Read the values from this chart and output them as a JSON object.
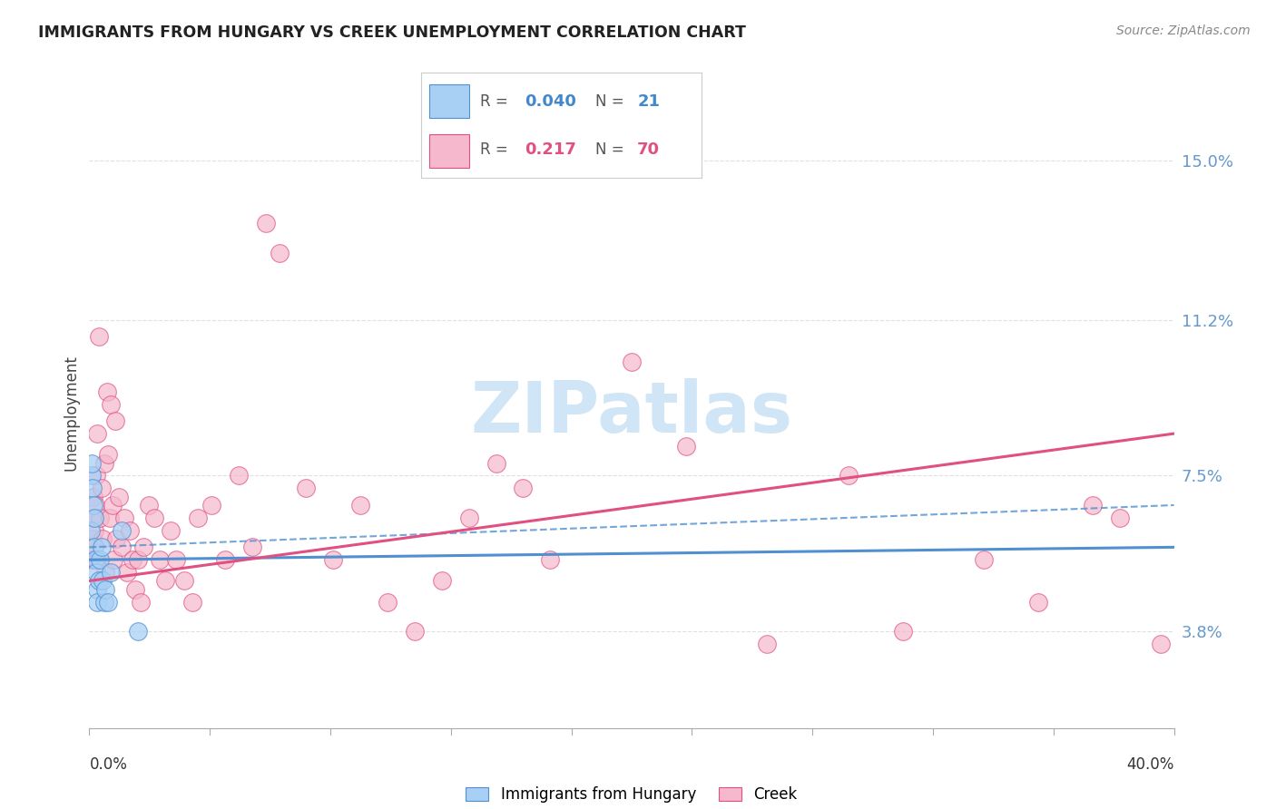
{
  "title": "IMMIGRANTS FROM HUNGARY VS CREEK UNEMPLOYMENT CORRELATION CHART",
  "source": "Source: ZipAtlas.com",
  "ylabel": "Unemployment",
  "ytick_labels": [
    "3.8%",
    "7.5%",
    "11.2%",
    "15.0%"
  ],
  "ytick_values": [
    3.8,
    7.5,
    11.2,
    15.0
  ],
  "xlim": [
    0.0,
    40.0
  ],
  "ylim": [
    1.5,
    16.5
  ],
  "legend_blue_R": "0.040",
  "legend_blue_N": "21",
  "legend_pink_R": "0.217",
  "legend_pink_N": "70",
  "blue_color": "#A8D0F5",
  "pink_color": "#F5B8CC",
  "blue_line_color": "#5090D0",
  "pink_line_color": "#E05080",
  "watermark_color": "#D0E5F5",
  "blue_scatter": [
    [
      0.05,
      6.2
    ],
    [
      0.08,
      7.5
    ],
    [
      0.1,
      7.8
    ],
    [
      0.12,
      7.2
    ],
    [
      0.15,
      6.8
    ],
    [
      0.18,
      6.5
    ],
    [
      0.2,
      5.8
    ],
    [
      0.22,
      5.5
    ],
    [
      0.25,
      5.2
    ],
    [
      0.28,
      4.8
    ],
    [
      0.3,
      4.5
    ],
    [
      0.35,
      5.0
    ],
    [
      0.4,
      5.5
    ],
    [
      0.45,
      5.8
    ],
    [
      0.5,
      5.0
    ],
    [
      0.55,
      4.5
    ],
    [
      0.6,
      4.8
    ],
    [
      0.7,
      4.5
    ],
    [
      0.8,
      5.2
    ],
    [
      1.2,
      6.2
    ],
    [
      1.8,
      3.8
    ]
  ],
  "pink_scatter": [
    [
      0.05,
      5.8
    ],
    [
      0.08,
      6.5
    ],
    [
      0.1,
      5.5
    ],
    [
      0.12,
      6.0
    ],
    [
      0.15,
      7.0
    ],
    [
      0.18,
      6.2
    ],
    [
      0.2,
      5.5
    ],
    [
      0.22,
      6.8
    ],
    [
      0.25,
      7.5
    ],
    [
      0.28,
      8.5
    ],
    [
      0.3,
      5.5
    ],
    [
      0.35,
      10.8
    ],
    [
      0.4,
      6.5
    ],
    [
      0.45,
      7.2
    ],
    [
      0.5,
      6.0
    ],
    [
      0.55,
      7.8
    ],
    [
      0.6,
      5.2
    ],
    [
      0.65,
      9.5
    ],
    [
      0.7,
      8.0
    ],
    [
      0.75,
      6.5
    ],
    [
      0.8,
      9.2
    ],
    [
      0.85,
      6.8
    ],
    [
      0.9,
      5.5
    ],
    [
      0.95,
      8.8
    ],
    [
      1.0,
      6.0
    ],
    [
      1.1,
      7.0
    ],
    [
      1.2,
      5.8
    ],
    [
      1.3,
      6.5
    ],
    [
      1.4,
      5.2
    ],
    [
      1.5,
      6.2
    ],
    [
      1.6,
      5.5
    ],
    [
      1.7,
      4.8
    ],
    [
      1.8,
      5.5
    ],
    [
      1.9,
      4.5
    ],
    [
      2.0,
      5.8
    ],
    [
      2.2,
      6.8
    ],
    [
      2.4,
      6.5
    ],
    [
      2.6,
      5.5
    ],
    [
      2.8,
      5.0
    ],
    [
      3.0,
      6.2
    ],
    [
      3.2,
      5.5
    ],
    [
      3.5,
      5.0
    ],
    [
      3.8,
      4.5
    ],
    [
      4.0,
      6.5
    ],
    [
      4.5,
      6.8
    ],
    [
      5.0,
      5.5
    ],
    [
      5.5,
      7.5
    ],
    [
      6.0,
      5.8
    ],
    [
      6.5,
      13.5
    ],
    [
      7.0,
      12.8
    ],
    [
      8.0,
      7.2
    ],
    [
      9.0,
      5.5
    ],
    [
      10.0,
      6.8
    ],
    [
      11.0,
      4.5
    ],
    [
      12.0,
      3.8
    ],
    [
      13.0,
      5.0
    ],
    [
      14.0,
      6.5
    ],
    [
      15.0,
      7.8
    ],
    [
      16.0,
      7.2
    ],
    [
      17.0,
      5.5
    ],
    [
      20.0,
      10.2
    ],
    [
      22.0,
      8.2
    ],
    [
      25.0,
      3.5
    ],
    [
      28.0,
      7.5
    ],
    [
      30.0,
      3.8
    ],
    [
      33.0,
      5.5
    ],
    [
      35.0,
      4.5
    ],
    [
      37.0,
      6.8
    ],
    [
      38.0,
      6.5
    ],
    [
      39.5,
      3.5
    ]
  ],
  "blue_line_x": [
    0.0,
    40.0
  ],
  "blue_line_y": [
    5.5,
    5.8
  ],
  "pink_line_x": [
    0.0,
    40.0
  ],
  "pink_line_y": [
    5.0,
    8.5
  ],
  "dashed_line_x": [
    0.0,
    40.0
  ],
  "dashed_line_y": [
    5.8,
    6.8
  ],
  "background_color": "#FFFFFF",
  "grid_color": "#E0E0E0"
}
